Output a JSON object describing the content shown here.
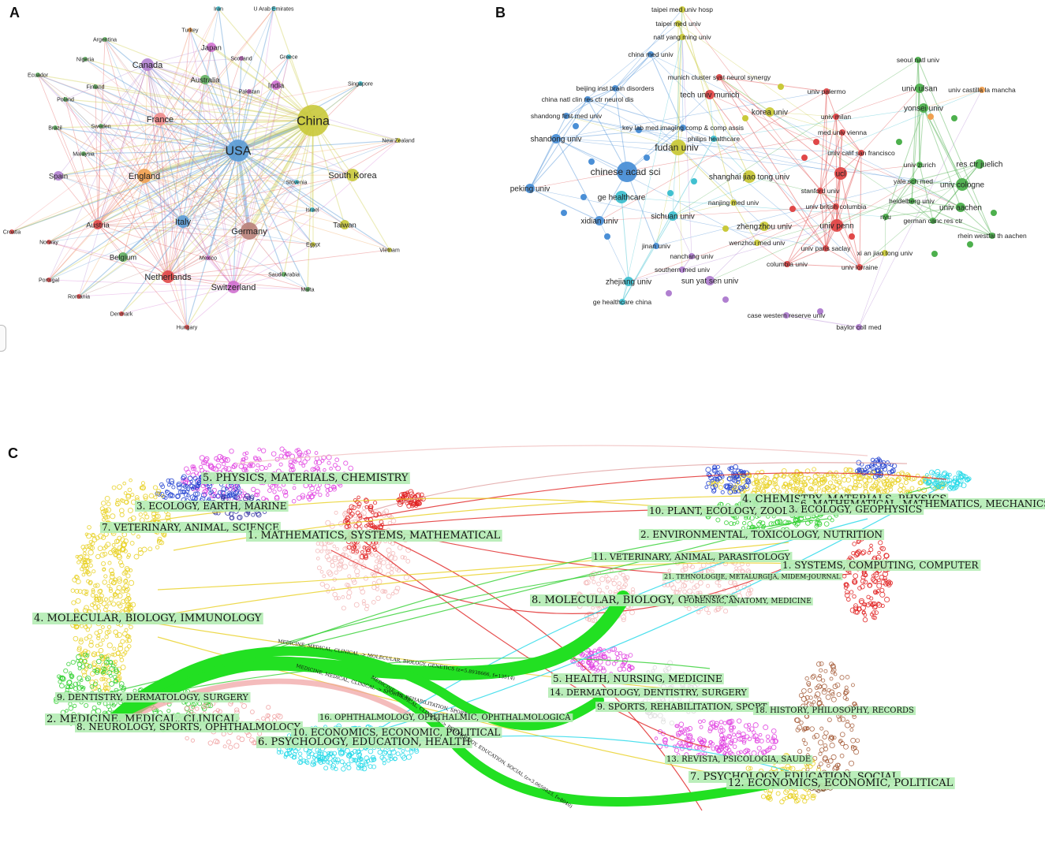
{
  "panels": {
    "a": "A",
    "b": "B",
    "c": "C"
  },
  "country_network": {
    "nodes": [
      {
        "id": "usa",
        "label": "USA",
        "color": "#5b9bd5",
        "weight": 5
      },
      {
        "id": "china",
        "label": "China",
        "color": "#c9c93a",
        "weight": 6
      },
      {
        "id": "germany",
        "label": "Germany",
        "color": "#b9827a",
        "weight": 4
      },
      {
        "id": "england",
        "label": "England",
        "color": "#f0a050",
        "weight": 3
      },
      {
        "id": "italy",
        "label": "Italy",
        "color": "#5b9bd5",
        "weight": 2
      },
      {
        "id": "france",
        "label": "France",
        "color": "#f08c8c",
        "weight": 2
      },
      {
        "id": "canada",
        "label": "Canada",
        "color": "#b07fd0",
        "weight": 2
      },
      {
        "id": "netherlands",
        "label": "Netherlands",
        "color": "#e04848",
        "weight": 2
      },
      {
        "id": "switzerland",
        "label": "Switzerland",
        "color": "#d070d0",
        "weight": 2
      },
      {
        "id": "south-korea",
        "label": "South Korea",
        "color": "#c9c93a",
        "weight": 2
      },
      {
        "id": "taiwan",
        "label": "Taiwan",
        "color": "#c9c93a",
        "weight": 1
      },
      {
        "id": "spain",
        "label": "Spain",
        "color": "#b07fd0",
        "weight": 1
      },
      {
        "id": "austria",
        "label": "Austria",
        "color": "#e04848",
        "weight": 1
      },
      {
        "id": "australia",
        "label": "Australia",
        "color": "#60b060",
        "weight": 1
      },
      {
        "id": "japan",
        "label": "Japan",
        "color": "#d070d0",
        "weight": 1
      },
      {
        "id": "india",
        "label": "India",
        "color": "#d070d0",
        "weight": 1
      },
      {
        "id": "belgium",
        "label": "Belgium",
        "color": "#60b060",
        "weight": 1
      },
      {
        "id": "iran",
        "label": "Iran",
        "color": "#40c0d0",
        "weight": 0
      },
      {
        "id": "uae",
        "label": "U Arab Emirates",
        "color": "#40c0d0",
        "weight": 0
      },
      {
        "id": "turkey",
        "label": "Turkey",
        "color": "#f0a050",
        "weight": 0
      },
      {
        "id": "argentina",
        "label": "Argentina",
        "color": "#60b060",
        "weight": 0
      },
      {
        "id": "nigeria",
        "label": "Nigeria",
        "color": "#60b060",
        "weight": 0
      },
      {
        "id": "ecuador",
        "label": "Ecuador",
        "color": "#60b060",
        "weight": 0
      },
      {
        "id": "finland",
        "label": "Finland",
        "color": "#60b060",
        "weight": 0
      },
      {
        "id": "poland",
        "label": "Poland",
        "color": "#60b060",
        "weight": 0
      },
      {
        "id": "sweden",
        "label": "Sweden",
        "color": "#60b060",
        "weight": 0
      },
      {
        "id": "brazil",
        "label": "Brazil",
        "color": "#60b060",
        "weight": 0
      },
      {
        "id": "malaysia",
        "label": "Malaysia",
        "color": "#60b060",
        "weight": 0
      },
      {
        "id": "scotland",
        "label": "Scotland",
        "color": "#d070d0",
        "weight": 0
      },
      {
        "id": "greece",
        "label": "Greece",
        "color": "#40c0d0",
        "weight": 0
      },
      {
        "id": "pakistan",
        "label": "Pakistan",
        "color": "#d070d0",
        "weight": 0
      },
      {
        "id": "singapore",
        "label": "Singapore",
        "color": "#40c0d0",
        "weight": 0
      },
      {
        "id": "new-zealand",
        "label": "New Zealand",
        "color": "#c9c93a",
        "weight": 0
      },
      {
        "id": "slovenia",
        "label": "Slovenia",
        "color": "#40c0d0",
        "weight": 0
      },
      {
        "id": "israel",
        "label": "Israel",
        "color": "#40c0d0",
        "weight": 0
      },
      {
        "id": "egypt",
        "label": "Egypt",
        "color": "#c9c93a",
        "weight": 0
      },
      {
        "id": "vietnam",
        "label": "Vietnam",
        "color": "#c9c93a",
        "weight": 0
      },
      {
        "id": "croatia",
        "label": "Croatia",
        "color": "#e04848",
        "weight": 0
      },
      {
        "id": "norway",
        "label": "Norway",
        "color": "#e04848",
        "weight": 0
      },
      {
        "id": "portugal",
        "label": "Portugal",
        "color": "#e04848",
        "weight": 0
      },
      {
        "id": "romania",
        "label": "Romania",
        "color": "#e04848",
        "weight": 0
      },
      {
        "id": "denmark",
        "label": "Denmark",
        "color": "#e04848",
        "weight": 0
      },
      {
        "id": "hungary",
        "label": "Hungary",
        "color": "#e04848",
        "weight": 0
      },
      {
        "id": "mexico",
        "label": "Mexico",
        "color": "#d070d0",
        "weight": 0
      },
      {
        "id": "saudi-arabia",
        "label": "Saudi Arabia",
        "color": "#60b060",
        "weight": 0
      },
      {
        "id": "malta",
        "label": "Malta",
        "color": "#60b060",
        "weight": 0
      }
    ]
  },
  "institution_network": {
    "nodes": [
      {
        "id": "taipei-med-univ-hosp",
        "label": "taipei med univ hosp",
        "color": "#c9c93a",
        "weight": 0
      },
      {
        "id": "taipei-med-univ",
        "label": "taipei med univ",
        "color": "#c9c93a",
        "weight": 0
      },
      {
        "id": "natl-yang-ming-univ",
        "label": "natl yang ming univ",
        "color": "#c9c93a",
        "weight": 0
      },
      {
        "id": "china-med-univ",
        "label": "china med univ",
        "color": "#4a8fd6",
        "weight": 0
      },
      {
        "id": "munich-cluster",
        "label": "munich cluster syst neurol synergy",
        "color": "#e04848",
        "weight": 0
      },
      {
        "id": "beijing-inst-brain",
        "label": "beijing inst brain disorders",
        "color": "#4a8fd6",
        "weight": 0
      },
      {
        "id": "tech-univ-munich",
        "label": "tech univ munich",
        "color": "#e04848",
        "weight": 1
      },
      {
        "id": "china-natl-clin",
        "label": "china natl clin res ctr neurol dis",
        "color": "#4a8fd6",
        "weight": 0
      },
      {
        "id": "shandong-first",
        "label": "shandong first med univ",
        "color": "#4a8fd6",
        "weight": 0
      },
      {
        "id": "key-lab-med",
        "label": "key lab med imaging comp & comp assis",
        "color": "#4a8fd6",
        "weight": 0
      },
      {
        "id": "philips",
        "label": "philips healthcare",
        "color": "#40c0d0",
        "weight": 0
      },
      {
        "id": "shandong-univ",
        "label": "shandong univ",
        "color": "#4a8fd6",
        "weight": 1
      },
      {
        "id": "fudan-univ",
        "label": "fudan univ",
        "color": "#c9c93a",
        "weight": 3
      },
      {
        "id": "chinese-acad-sci",
        "label": "chinese acad sci",
        "color": "#4a8fd6",
        "weight": 4
      },
      {
        "id": "korea-univ",
        "label": "korea univ",
        "color": "#c9c93a",
        "weight": 1
      },
      {
        "id": "univ-palermo",
        "label": "univ palermo",
        "color": "#e04848",
        "weight": 0
      },
      {
        "id": "univ-milan",
        "label": "univ milan",
        "color": "#e04848",
        "weight": 0
      },
      {
        "id": "med-univ-vienna",
        "label": "med univ vienna",
        "color": "#e04848",
        "weight": 0
      },
      {
        "id": "univ-calif-sf",
        "label": "univ calif san francisco",
        "color": "#e04848",
        "weight": 0
      },
      {
        "id": "shanghai-jiao-tong",
        "label": "shanghai jiao tong univ",
        "color": "#c9c93a",
        "weight": 2
      },
      {
        "id": "ucl",
        "label": "ucl",
        "color": "#e04848",
        "weight": 2
      },
      {
        "id": "peking-univ",
        "label": "peking univ",
        "color": "#4a8fd6",
        "weight": 1
      },
      {
        "id": "ge-healthcare",
        "label": "ge healthcare",
        "color": "#40c0d0",
        "weight": 2
      },
      {
        "id": "stanford",
        "label": "stanford univ",
        "color": "#e04848",
        "weight": 0
      },
      {
        "id": "nanjing-med",
        "label": "nanjing med univ",
        "color": "#c9c93a",
        "weight": 0
      },
      {
        "id": "univ-british-columbia",
        "label": "univ british columbia",
        "color": "#e04848",
        "weight": 0
      },
      {
        "id": "sichuan",
        "label": "sichuan univ",
        "color": "#40c0d0",
        "weight": 1
      },
      {
        "id": "xidian",
        "label": "xidian univ",
        "color": "#4a8fd6",
        "weight": 1
      },
      {
        "id": "zhengzhou",
        "label": "zhengzhou univ",
        "color": "#c9c93a",
        "weight": 1
      },
      {
        "id": "univ-penn",
        "label": "univ penn",
        "color": "#e04848",
        "weight": 2
      },
      {
        "id": "wenzhou",
        "label": "wenzhou med univ",
        "color": "#c9c93a",
        "weight": 0
      },
      {
        "id": "jinan",
        "label": "jinan univ",
        "color": "#4a8fd6",
        "weight": 0
      },
      {
        "id": "univ-paris-saclay",
        "label": "univ paris saclay",
        "color": "#e04848",
        "weight": 0
      },
      {
        "id": "xian-jiao-tong",
        "label": "xi an jiao tong univ",
        "color": "#c9c93a",
        "weight": 0
      },
      {
        "id": "nanchang",
        "label": "nanchang univ",
        "color": "#b07fd0",
        "weight": 0
      },
      {
        "id": "columbia",
        "label": "columbia univ",
        "color": "#e04848",
        "weight": 0
      },
      {
        "id": "univ-lorraine",
        "label": "univ lorraine",
        "color": "#e04848",
        "weight": 0
      },
      {
        "id": "southern-med",
        "label": "southern med univ",
        "color": "#b07fd0",
        "weight": 0
      },
      {
        "id": "zhejiang",
        "label": "zhejiang univ",
        "color": "#40c0d0",
        "weight": 1
      },
      {
        "id": "sun-yat-sen",
        "label": "sun yat sen univ",
        "color": "#b07fd0",
        "weight": 1
      },
      {
        "id": "ge-healthcare-china",
        "label": "ge healthcare china",
        "color": "#40c0d0",
        "weight": 0
      },
      {
        "id": "case-western",
        "label": "case western reserve univ",
        "color": "#b07fd0",
        "weight": 0
      },
      {
        "id": "baylor",
        "label": "baylor coll med",
        "color": "#b07fd0",
        "weight": 0
      },
      {
        "id": "seoul-natl",
        "label": "seoul natl univ",
        "color": "#4db04d",
        "weight": 0
      },
      {
        "id": "univ-ulsan",
        "label": "univ ulsan",
        "color": "#4db04d",
        "weight": 1
      },
      {
        "id": "univ-castilla",
        "label": "univ castilla la mancha",
        "color": "#f0a050",
        "weight": 0
      },
      {
        "id": "yonsei",
        "label": "yonsei univ",
        "color": "#4db04d",
        "weight": 1
      },
      {
        "id": "univ-zurich",
        "label": "univ zurich",
        "color": "#4db04d",
        "weight": 0
      },
      {
        "id": "res-ctr-juelich",
        "label": "res ctr juelich",
        "color": "#4db04d",
        "weight": 1
      },
      {
        "id": "yale",
        "label": "yale sch med",
        "color": "#4db04d",
        "weight": 0
      },
      {
        "id": "univ-cologne",
        "label": "univ cologne",
        "color": "#4db04d",
        "weight": 2
      },
      {
        "id": "heidelberg",
        "label": "heidelberg univ",
        "color": "#4db04d",
        "weight": 0
      },
      {
        "id": "nyu",
        "label": "nyu",
        "color": "#4db04d",
        "weight": 0
      },
      {
        "id": "german-canc",
        "label": "german canc res ctr",
        "color": "#4db04d",
        "weight": 0
      },
      {
        "id": "univ-aachen",
        "label": "univ aachen",
        "color": "#4db04d",
        "weight": 1
      },
      {
        "id": "rhein-westfal",
        "label": "rhein westfal th aachen",
        "color": "#4db04d",
        "weight": 0
      }
    ]
  },
  "overlay_map": {
    "citing_clusters": [
      "5. PHYSICS, MATERIALS, CHEMISTRY",
      "3. ECOLOGY, EARTH, MARINE",
      "7. VETERINARY, ANIMAL, SCIENCE",
      "1. MATHEMATICS, SYSTEMS, MATHEMATICAL",
      "4. MOLECULAR, BIOLOGY, IMMUNOLOGY",
      "9. DENTISTRY, DERMATOLOGY, SURGERY",
      "2. MEDICINE, MEDICAL, CLINICAL",
      "8. NEUROLOGY, SPORTS, OPHTHALMOLOGY",
      "10. ECONOMICS, ECONOMIC, POLITICAL",
      "6. PSYCHOLOGY, EDUCATION, HEALTH",
      "16. OPHTHALMOLOGY, OPHTHALMIC, OPHTHALMOLOGICA"
    ],
    "cited_clusters": [
      "4. CHEMISTRY, MATERIALS, PHYSICS",
      "6. MATHEMATICAL, MATHEMATICS, MECHANICS",
      "10. PLANT, ECOLOGY, ZOOLOGY",
      "3. ECOLOGY, GEOPHYSICS",
      "2. ENVIRONMENTAL, TOXICOLOGY, NUTRITION",
      "11. VETERINARY, ANIMAL, PARASITOLOGY",
      "1. SYSTEMS, COMPUTING, COMPUTER",
      "21. TEHNOLOGIJE, METALURGIJA, MIDEM-JOURNAL",
      "8. MOLECULAR, BIOLOGY, GENETICS",
      "FORENSIC, ANATOMY, MEDICINE",
      "5. HEALTH, NURSING, MEDICINE",
      "14. DERMATOLOGY, DENTISTRY, SURGERY",
      "9. SPORTS, REHABILITATION, SPORT",
      "18. HISTORY, PHILOSOPHY, RECORDS",
      "13. REVISTA, PSICOLOGIA, SAUDE",
      "7. PSYCHOLOGY, EDUCATION, SOCIAL",
      "12. ECONOMICS, ECONOMIC, POLITICAL"
    ],
    "path_labels": [
      "MEDICINE, MEDICAL, CLINICAL -> MOLECULAR, BIOLOGY, GENETICS (z=5.8938666, f=13514)",
      "MEDICINE, MEDICAL, CLINICAL -> SPORTS, REHABILITATION, SPORT",
      "MEDICINE, MEDICAL, CLINICAL -> PSYCHOLOGY, EDUCATION, SOCIAL (z=3.0658823, f=8040)"
    ],
    "colors": {
      "main_path": "#22e022",
      "red": "#e02020",
      "yellow": "#e8d020",
      "green": "#30d030",
      "cyan": "#20d8e8",
      "magenta": "#e040e0",
      "blue": "#2040d0",
      "label_bg": "#b4ecb4"
    }
  }
}
